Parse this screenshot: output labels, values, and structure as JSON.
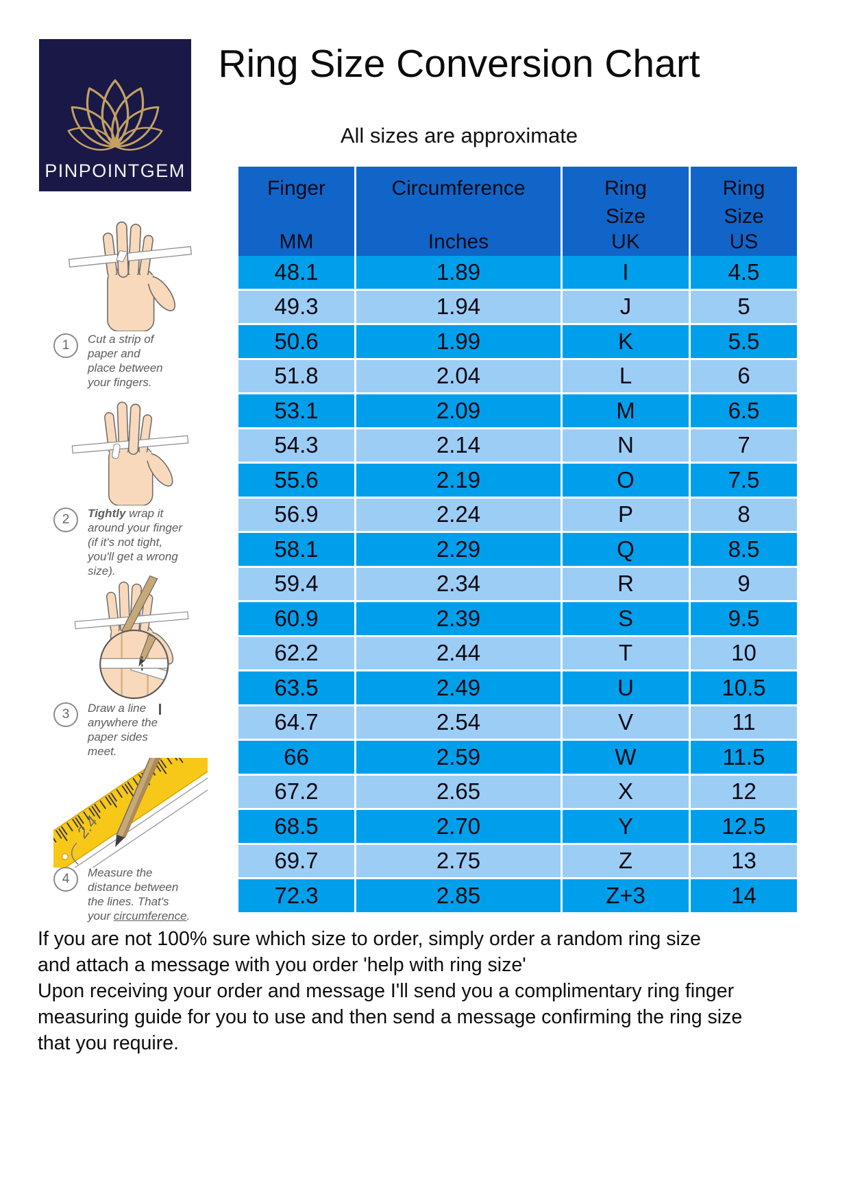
{
  "logo": {
    "brand": "PINPOINTGEM",
    "icon": "lotus-flower-icon",
    "background_color": "#1A1847",
    "gold_color": "#C2A163",
    "text_color": "#F4F2EC"
  },
  "header": {
    "title": "Ring Size Conversion Chart",
    "subtitle": "All sizes are approximate"
  },
  "table": {
    "header_color": "#1164C8",
    "row_color_bright": "#009FEC",
    "row_color_light": "#9CCDF4",
    "columns": [
      {
        "top": "Finger",
        "bottom": "MM"
      },
      {
        "top": "Circumference",
        "bottom": "Inches"
      },
      {
        "top": "Ring\nSize",
        "bottom": "UK"
      },
      {
        "top": "Ring\nSize",
        "bottom": "US"
      }
    ],
    "rows": [
      [
        "48.1",
        "1.89",
        "I",
        "4.5"
      ],
      [
        "49.3",
        "1.94",
        "J",
        "5"
      ],
      [
        "50.6",
        "1.99",
        "K",
        "5.5"
      ],
      [
        "51.8",
        "2.04",
        "L",
        "6"
      ],
      [
        "53.1",
        "2.09",
        "M",
        "6.5"
      ],
      [
        "54.3",
        "2.14",
        "N",
        "7"
      ],
      [
        "55.6",
        "2.19",
        "O",
        "7.5"
      ],
      [
        "56.9",
        "2.24",
        "P",
        "8"
      ],
      [
        "58.1",
        "2.29",
        "Q",
        "8.5"
      ],
      [
        "59.4",
        "2.34",
        "R",
        "9"
      ],
      [
        "60.9",
        "2.39",
        "S",
        "9.5"
      ],
      [
        "62.2",
        "2.44",
        "T",
        "10"
      ],
      [
        "63.5",
        "2.49",
        "U",
        "10.5"
      ],
      [
        "64.7",
        "2.54",
        "V",
        "11"
      ],
      [
        "66",
        "2.59",
        "W",
        "11.5"
      ],
      [
        "67.2",
        "2.65",
        "X",
        "12"
      ],
      [
        "68.5",
        "2.70",
        "Y",
        "12.5"
      ],
      [
        "69.7",
        "2.75",
        "Z",
        "13"
      ],
      [
        "72.3",
        "2.85",
        "Z+3",
        "14"
      ]
    ]
  },
  "steps": [
    {
      "number": "1",
      "text": "Cut a strip of paper and place between your fingers.",
      "illustration": "hand-with-paper-strip-icon"
    },
    {
      "number": "2",
      "bold": "Tightly",
      "text": " wrap it around your finger (if it's not tight, you'll get a wrong size).",
      "illustration": "hand-wrapped-strip-icon"
    },
    {
      "number": "3",
      "text": "Draw a line anywhere the paper sides meet.",
      "illustration": "hand-pencil-magnifier-icon"
    },
    {
      "number": "4",
      "pre": "Measure the distance between the lines. That's your ",
      "underline": "circumference",
      "post": ".",
      "measurement_label": "2.4",
      "illustration": "ruler-pencil-icon"
    }
  ],
  "footer": {
    "lines": [
      "If you are not 100% sure which size to order, simply order a random ring size",
      "and attach a message with you order 'help with ring size'",
      "Upon receiving your order and message I'll send you a complimentary ring finger",
      "measuring guide for you to use and then send a message confirming the ring size",
      "that you require."
    ]
  },
  "chart_data": {
    "type": "table",
    "title": "Ring Size Conversion Chart",
    "subtitle": "All sizes are approximate",
    "columns": [
      "Finger MM",
      "Circumference Inches",
      "Ring Size UK",
      "Ring Size US"
    ],
    "rows": [
      [
        "48.1",
        "1.89",
        "I",
        "4.5"
      ],
      [
        "49.3",
        "1.94",
        "J",
        "5"
      ],
      [
        "50.6",
        "1.99",
        "K",
        "5.5"
      ],
      [
        "51.8",
        "2.04",
        "L",
        "6"
      ],
      [
        "53.1",
        "2.09",
        "M",
        "6.5"
      ],
      [
        "54.3",
        "2.14",
        "N",
        "7"
      ],
      [
        "55.6",
        "2.19",
        "O",
        "7.5"
      ],
      [
        "56.9",
        "2.24",
        "P",
        "8"
      ],
      [
        "58.1",
        "2.29",
        "Q",
        "8.5"
      ],
      [
        "59.4",
        "2.34",
        "R",
        "9"
      ],
      [
        "60.9",
        "2.39",
        "S",
        "9.5"
      ],
      [
        "62.2",
        "2.44",
        "T",
        "10"
      ],
      [
        "63.5",
        "2.49",
        "U",
        "10.5"
      ],
      [
        "64.7",
        "2.54",
        "V",
        "11"
      ],
      [
        "66",
        "2.59",
        "W",
        "11.5"
      ],
      [
        "67.2",
        "2.65",
        "X",
        "12"
      ],
      [
        "68.5",
        "2.70",
        "Y",
        "12.5"
      ],
      [
        "69.7",
        "2.75",
        "Z",
        "13"
      ],
      [
        "72.3",
        "2.85",
        "Z+3",
        "14"
      ]
    ]
  }
}
